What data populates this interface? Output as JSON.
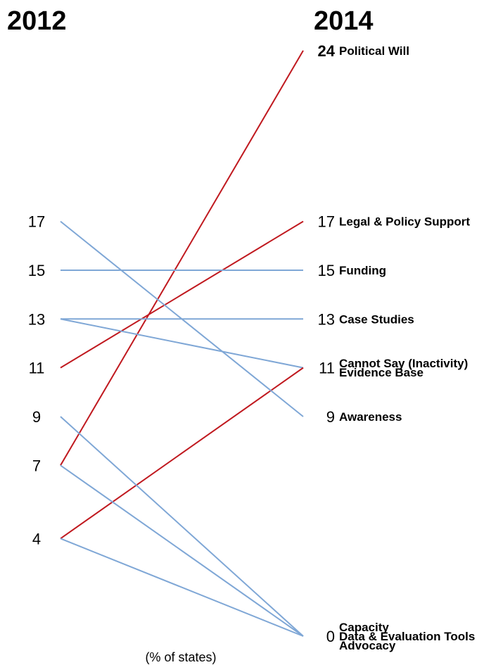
{
  "chart_data": {
    "type": "line",
    "title": "",
    "x": [
      "2012",
      "2014"
    ],
    "axis_note": "(% of states)",
    "ylim": [
      0,
      24
    ],
    "colors": {
      "increase": "#c0191f",
      "other": "#7fa7d6"
    },
    "left_ticks": [
      "17",
      "15",
      "13",
      "11",
      "9",
      "7",
      "4"
    ],
    "right_groups": [
      {
        "value": "24",
        "labels": [
          "Political Will"
        ]
      },
      {
        "value": "17",
        "labels": [
          "Legal & Policy Support"
        ]
      },
      {
        "value": "15",
        "labels": [
          "Funding"
        ]
      },
      {
        "value": "13",
        "labels": [
          "Case Studies"
        ]
      },
      {
        "value": "11",
        "labels": [
          "Cannot Say (Inactivity)",
          "Evidence Base"
        ]
      },
      {
        "value": "9",
        "labels": [
          "Awareness"
        ]
      },
      {
        "value": "0",
        "labels": [
          "Capacity",
          "Data & Evaluation Tools",
          "Advocacy"
        ]
      }
    ],
    "series": [
      {
        "name": "Political Will",
        "values": [
          7,
          24
        ],
        "color": "#c0191f"
      },
      {
        "name": "Legal & Policy Support",
        "values": [
          11,
          17
        ],
        "color": "#c0191f"
      },
      {
        "name": "Funding",
        "values": [
          15,
          15
        ],
        "color": "#7fa7d6"
      },
      {
        "name": "Case Studies",
        "values": [
          13,
          13
        ],
        "color": "#7fa7d6"
      },
      {
        "name": "Cannot Say (Inactivity)",
        "values": [
          13,
          11
        ],
        "color": "#7fa7d6"
      },
      {
        "name": "Evidence Base",
        "values": [
          4,
          11
        ],
        "color": "#c0191f"
      },
      {
        "name": "Awareness",
        "values": [
          17,
          9
        ],
        "color": "#7fa7d6"
      },
      {
        "name": "Capacity",
        "values": [
          9,
          0
        ],
        "color": "#7fa7d6"
      },
      {
        "name": "Data & Evaluation Tools",
        "values": [
          7,
          0
        ],
        "color": "#7fa7d6"
      },
      {
        "name": "Advocacy",
        "values": [
          4,
          0
        ],
        "color": "#7fa7d6"
      }
    ]
  }
}
